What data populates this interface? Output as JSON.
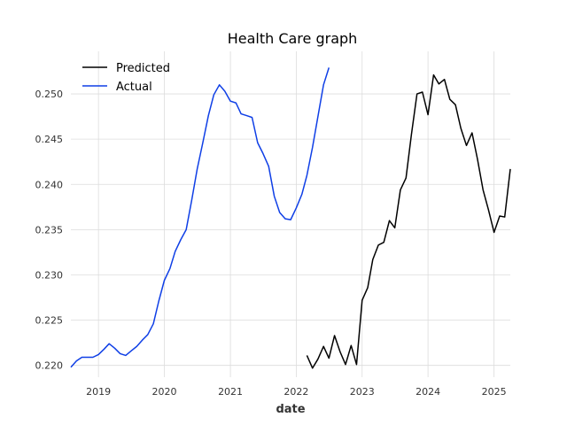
{
  "chart_data": {
    "type": "line",
    "title": "Health Care graph",
    "xlabel": "date",
    "ylabel": "",
    "xlim": [
      "2018-08-01",
      "2025-04-01"
    ],
    "ylim": [
      0.2187,
      0.2547
    ],
    "grid": true,
    "legend_position": "top-left",
    "x_ticks": [
      "2019",
      "2020",
      "2021",
      "2022",
      "2023",
      "2024",
      "2025"
    ],
    "y_ticks": [
      "0.220",
      "0.225",
      "0.230",
      "0.235",
      "0.240",
      "0.245",
      "0.250"
    ],
    "series": [
      {
        "name": "Predicted",
        "color": "#000000",
        "points": [
          [
            "2022-03-01",
            0.2211
          ],
          [
            "2022-04-01",
            0.2197
          ],
          [
            "2022-05-01",
            0.2207
          ],
          [
            "2022-06-01",
            0.2221
          ],
          [
            "2022-07-01",
            0.2208
          ],
          [
            "2022-08-01",
            0.2233
          ],
          [
            "2022-09-01",
            0.2215
          ],
          [
            "2022-10-01",
            0.2201
          ],
          [
            "2022-11-01",
            0.2222
          ],
          [
            "2022-12-01",
            0.2201
          ],
          [
            "2023-01-01",
            0.2272
          ],
          [
            "2023-02-01",
            0.2286
          ],
          [
            "2023-03-01",
            0.2317
          ],
          [
            "2023-04-01",
            0.2333
          ],
          [
            "2023-05-01",
            0.2336
          ],
          [
            "2023-06-01",
            0.236
          ],
          [
            "2023-07-01",
            0.2352
          ],
          [
            "2023-08-01",
            0.2394
          ],
          [
            "2023-09-01",
            0.2407
          ],
          [
            "2023-10-01",
            0.2455
          ],
          [
            "2023-11-01",
            0.25
          ],
          [
            "2023-12-01",
            0.2502
          ],
          [
            "2024-01-01",
            0.2477
          ],
          [
            "2024-02-01",
            0.2521
          ],
          [
            "2024-03-01",
            0.2511
          ],
          [
            "2024-04-01",
            0.2516
          ],
          [
            "2024-05-01",
            0.2494
          ],
          [
            "2024-06-01",
            0.2488
          ],
          [
            "2024-07-01",
            0.2462
          ],
          [
            "2024-08-01",
            0.2443
          ],
          [
            "2024-09-01",
            0.2457
          ],
          [
            "2024-10-01",
            0.2428
          ],
          [
            "2024-11-01",
            0.2394
          ],
          [
            "2024-12-01",
            0.2372
          ],
          [
            "2025-01-01",
            0.2347
          ],
          [
            "2025-02-01",
            0.2365
          ],
          [
            "2025-03-01",
            0.2364
          ],
          [
            "2025-04-01",
            0.2417
          ]
        ]
      },
      {
        "name": "Actual",
        "color": "#0f3fe6",
        "points": [
          [
            "2018-08-01",
            0.2198
          ],
          [
            "2018-09-01",
            0.2205
          ],
          [
            "2018-10-01",
            0.2209
          ],
          [
            "2018-11-01",
            0.2209
          ],
          [
            "2018-12-01",
            0.2209
          ],
          [
            "2019-01-01",
            0.2212
          ],
          [
            "2019-02-01",
            0.2218
          ],
          [
            "2019-03-01",
            0.2224
          ],
          [
            "2019-04-01",
            0.2219
          ],
          [
            "2019-05-01",
            0.2213
          ],
          [
            "2019-06-01",
            0.2211
          ],
          [
            "2019-07-01",
            0.2216
          ],
          [
            "2019-08-01",
            0.2221
          ],
          [
            "2019-09-01",
            0.2228
          ],
          [
            "2019-10-01",
            0.2234
          ],
          [
            "2019-11-01",
            0.2246
          ],
          [
            "2019-12-01",
            0.2271
          ],
          [
            "2020-01-01",
            0.2294
          ],
          [
            "2020-02-01",
            0.2307
          ],
          [
            "2020-03-01",
            0.2326
          ],
          [
            "2020-04-01",
            0.2339
          ],
          [
            "2020-05-01",
            0.235
          ],
          [
            "2020-06-01",
            0.2383
          ],
          [
            "2020-07-01",
            0.2417
          ],
          [
            "2020-08-01",
            0.2446
          ],
          [
            "2020-09-01",
            0.2476
          ],
          [
            "2020-10-01",
            0.2499
          ],
          [
            "2020-11-01",
            0.251
          ],
          [
            "2020-12-01",
            0.2503
          ],
          [
            "2021-01-01",
            0.2492
          ],
          [
            "2021-02-01",
            0.249
          ],
          [
            "2021-03-01",
            0.2478
          ],
          [
            "2021-04-01",
            0.2476
          ],
          [
            "2021-05-01",
            0.2474
          ],
          [
            "2021-06-01",
            0.2446
          ],
          [
            "2021-07-01",
            0.2434
          ],
          [
            "2021-08-01",
            0.242
          ],
          [
            "2021-09-01",
            0.2387
          ],
          [
            "2021-10-01",
            0.2369
          ],
          [
            "2021-11-01",
            0.2362
          ],
          [
            "2021-12-01",
            0.2361
          ],
          [
            "2022-01-01",
            0.2374
          ],
          [
            "2022-02-01",
            0.2389
          ],
          [
            "2022-03-01",
            0.241
          ],
          [
            "2022-04-01",
            0.2441
          ],
          [
            "2022-05-01",
            0.2475
          ],
          [
            "2022-06-01",
            0.251
          ],
          [
            "2022-07-01",
            0.2529
          ]
        ]
      }
    ]
  }
}
